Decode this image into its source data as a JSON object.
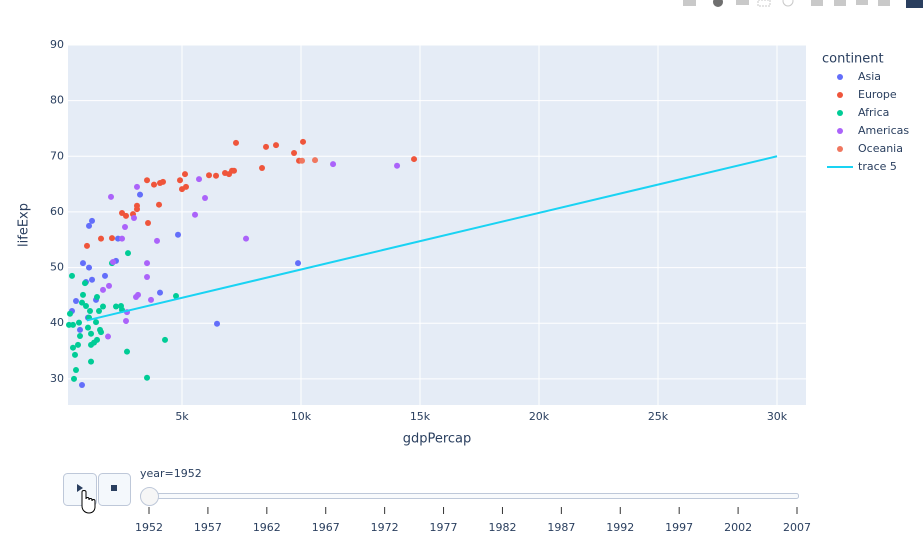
{
  "chart_data": {
    "type": "scatter",
    "x_label": "gdpPercap",
    "y_label": "lifeExp",
    "legend_title": "continent",
    "xlim": [
      210,
      31218
    ],
    "ylim": [
      25.3,
      90
    ],
    "xticks": [
      {
        "value": 5000,
        "label": "5k"
      },
      {
        "value": 10000,
        "label": "10k"
      },
      {
        "value": 15000,
        "label": "15k"
      },
      {
        "value": 20000,
        "label": "20k"
      },
      {
        "value": 25000,
        "label": "25k"
      },
      {
        "value": 30000,
        "label": "30k"
      }
    ],
    "yticks": [
      30,
      40,
      50,
      60,
      70,
      80,
      90
    ],
    "grid": true,
    "legend": "right",
    "series": [
      {
        "name": "Asia",
        "color": "#636efa",
        "mode": "markers",
        "x": [
          378,
          840,
          1093,
          1219,
          966,
          1219,
          546,
          714,
          798,
          1050,
          1093,
          1387,
          1765,
          2227,
          2311,
          3236,
          4832,
          4076,
          6471,
          9875
        ],
        "values": [
          42.2,
          50.8,
          57.5,
          58.4,
          47.4,
          47.8,
          44.0,
          38.8,
          28.9,
          41.0,
          50.0,
          44.2,
          48.5,
          51.2,
          55.2,
          63.1,
          55.9,
          45.5,
          39.9,
          50.8
        ]
      },
      {
        "name": "Europe",
        "color": "#ef553b",
        "mode": "markers",
        "x": [
          1008,
          1597,
          2059,
          2479,
          2647,
          2941,
          3109,
          3109,
          3530,
          3572,
          3824,
          4034,
          4076,
          4202,
          4916,
          5000,
          5126,
          5168,
          6135,
          6429,
          6807,
          6975,
          7101,
          7185,
          7269,
          8362,
          8530,
          8950,
          9707,
          9917,
          10085,
          14749
        ],
        "values": [
          53.9,
          55.2,
          55.3,
          59.8,
          59.3,
          59.6,
          60.5,
          61.1,
          65.7,
          58.0,
          64.9,
          61.3,
          65.2,
          65.4,
          65.7,
          64.1,
          66.8,
          64.5,
          66.6,
          66.5,
          67.0,
          66.8,
          67.4,
          67.4,
          72.4,
          67.9,
          71.7,
          72.0,
          70.6,
          69.2,
          72.6,
          69.5
        ]
      },
      {
        "name": "Africa",
        "color": "#00cc96",
        "mode": "markers",
        "x": [
          378,
          294,
          420,
          420,
          504,
          546,
          462,
          672,
          714,
          798,
          924,
          966,
          1050,
          1093,
          1135,
          1177,
          1177,
          1177,
          1387,
          1429,
          1513,
          1555,
          1597,
          1681,
          2059,
          2227,
          2437,
          2479,
          2731,
          2689,
          3530,
          4286,
          4748,
          630,
          1303,
          1429,
          840,
          252
        ],
        "values": [
          48.5,
          41.7,
          39.7,
          35.6,
          34.3,
          31.6,
          30.0,
          40.1,
          37.7,
          43.7,
          47.2,
          43.1,
          39.2,
          41.0,
          42.2,
          38.1,
          33.1,
          36.1,
          40.2,
          44.7,
          42.2,
          38.8,
          38.4,
          43.0,
          50.8,
          43.0,
          43.1,
          42.4,
          52.6,
          34.9,
          30.2,
          37.0,
          44.9,
          36.1,
          36.5,
          37.0,
          45.1,
          39.7
        ]
      },
      {
        "name": "Americas",
        "color": "#ab63fa",
        "mode": "markers",
        "x": [
          1681,
          1933,
          1891,
          2017,
          2101,
          2479,
          2605,
          2689,
          2983,
          3109,
          3067,
          3152,
          3530,
          3530,
          3698,
          3950,
          5547,
          5715,
          5967,
          7690,
          11346,
          14035,
          2647
        ],
        "values": [
          46.0,
          46.7,
          37.6,
          62.7,
          51.0,
          55.2,
          57.3,
          42.0,
          58.9,
          64.5,
          44.7,
          45.1,
          50.8,
          48.3,
          44.2,
          54.8,
          59.5,
          65.9,
          62.5,
          55.2,
          68.6,
          68.3,
          40.4
        ]
      },
      {
        "name": "Oceania",
        "color": "#f0775f",
        "mode": "markers",
        "x": [
          10043,
          10589
        ],
        "values": [
          69.2,
          69.3
        ]
      },
      {
        "name": "trace 5",
        "color": "#19d3f3",
        "mode": "lines",
        "x": [
          1000,
          30000
        ],
        "values": [
          40.5,
          70
        ]
      }
    ]
  },
  "slider": {
    "current_label": "year=1952",
    "steps": [
      1952,
      1957,
      1962,
      1967,
      1972,
      1977,
      1982,
      1987,
      1992,
      1997,
      2002,
      2007
    ]
  }
}
